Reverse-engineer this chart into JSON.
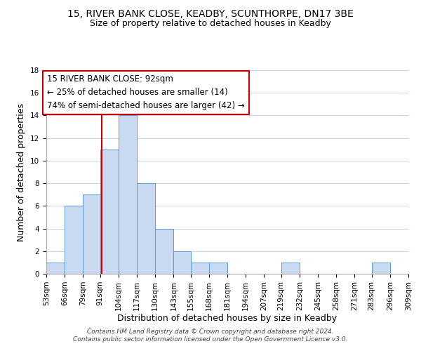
{
  "title": "15, RIVER BANK CLOSE, KEADBY, SCUNTHORPE, DN17 3BE",
  "subtitle": "Size of property relative to detached houses in Keadby",
  "xlabel": "Distribution of detached houses by size in Keadby",
  "ylabel": "Number of detached properties",
  "bin_edges": [
    53,
    66,
    79,
    91,
    104,
    117,
    130,
    143,
    155,
    168,
    181,
    194,
    207,
    219,
    232,
    245,
    258,
    271,
    283,
    296,
    309
  ],
  "bar_heights": [
    1,
    6,
    7,
    11,
    14,
    8,
    4,
    2,
    1,
    1,
    0,
    0,
    0,
    1,
    0,
    0,
    0,
    0,
    1,
    0
  ],
  "bar_color": "#c8d9f0",
  "bar_edge_color": "#5b9bd5",
  "red_line_x": 92,
  "ylim": [
    0,
    18
  ],
  "yticks": [
    0,
    2,
    4,
    6,
    8,
    10,
    12,
    14,
    16,
    18
  ],
  "annotation_text": "15 RIVER BANK CLOSE: 92sqm\n← 25% of detached houses are smaller (14)\n74% of semi-detached houses are larger (42) →",
  "annotation_box_color": "#ffffff",
  "annotation_box_edge": "#cc0000",
  "footer_text": "Contains HM Land Registry data © Crown copyright and database right 2024.\nContains public sector information licensed under the Open Government Licence v3.0.",
  "background_color": "#ffffff",
  "grid_color": "#c8d8ee",
  "title_fontsize": 10,
  "subtitle_fontsize": 9,
  "axis_label_fontsize": 9,
  "tick_label_fontsize": 7.5,
  "annotation_fontsize": 8.5
}
